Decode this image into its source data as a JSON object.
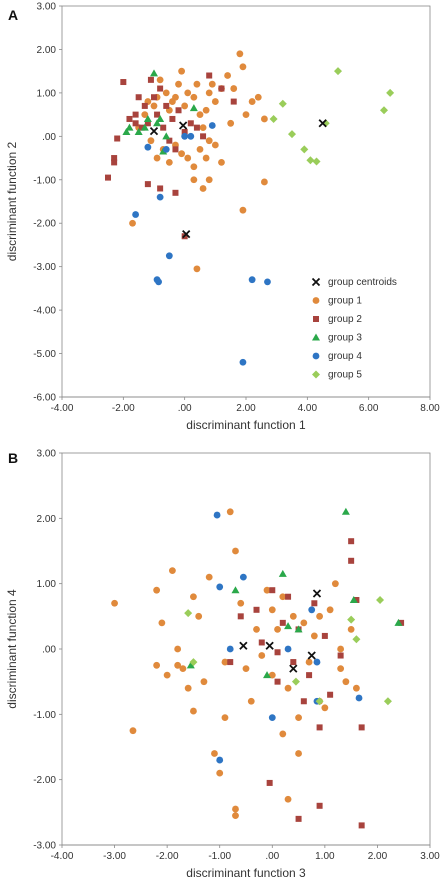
{
  "series_styles": {
    "group centroids": {
      "color": "#111111",
      "marker": "x"
    },
    "group 1": {
      "color": "#E08A3C",
      "marker": "circle"
    },
    "group 2": {
      "color": "#A8433D",
      "marker": "square"
    },
    "group 3": {
      "color": "#2AA84A",
      "marker": "triangle"
    },
    "group 4": {
      "color": "#2E75C4",
      "marker": "circle"
    },
    "group 5": {
      "color": "#9ACD5A",
      "marker": "diamond"
    }
  },
  "chart_data": [
    {
      "panel": "A",
      "type": "scatter",
      "xlabel": "discriminant function 1",
      "ylabel": "discriminant function 2",
      "xlim": [
        -4,
        8
      ],
      "ylim": [
        -6,
        3
      ],
      "xticks": [
        "-4.00",
        "-2.00",
        ".00",
        "2.00",
        "4.00",
        "6.00",
        "8.00"
      ],
      "yticks": [
        "3.00",
        "2.00",
        "1.00",
        ".00",
        "-1.00",
        "-2.00",
        "-3.00",
        "-4.00",
        "-5.00",
        "-6.00"
      ],
      "legend_position": "lower-right",
      "legend": [
        "group centroids",
        "group 1",
        "group 2",
        "group 3",
        "group 4",
        "group 5"
      ],
      "series": [
        {
          "name": "group centroids",
          "points": [
            [
              -0.05,
              0.25
            ],
            [
              -1.0,
              0.12
            ],
            [
              0.05,
              -2.25
            ],
            [
              4.5,
              0.3
            ]
          ]
        },
        {
          "name": "group 1",
          "points": [
            [
              -1.7,
              -2.0
            ],
            [
              -1.5,
              0.2
            ],
            [
              -1.3,
              0.5
            ],
            [
              -1.2,
              0.8
            ],
            [
              -1.0,
              0.7
            ],
            [
              -0.9,
              0.9
            ],
            [
              -0.8,
              1.3
            ],
            [
              -0.6,
              1.0
            ],
            [
              -0.5,
              0.6
            ],
            [
              -0.4,
              0.8
            ],
            [
              -0.3,
              0.9
            ],
            [
              -0.2,
              1.2
            ],
            [
              -0.1,
              1.5
            ],
            [
              0.0,
              0.7
            ],
            [
              0.1,
              1.0
            ],
            [
              0.3,
              0.9
            ],
            [
              0.4,
              1.2
            ],
            [
              0.5,
              0.5
            ],
            [
              0.6,
              0.2
            ],
            [
              0.7,
              0.6
            ],
            [
              0.8,
              1.0
            ],
            [
              0.9,
              1.2
            ],
            [
              1.0,
              0.8
            ],
            [
              1.2,
              1.1
            ],
            [
              1.4,
              1.4
            ],
            [
              1.6,
              1.1
            ],
            [
              1.8,
              1.9
            ],
            [
              1.9,
              1.6
            ],
            [
              2.0,
              0.5
            ],
            [
              2.2,
              0.8
            ],
            [
              2.4,
              0.9
            ],
            [
              2.6,
              0.4
            ],
            [
              1.9,
              -1.7
            ],
            [
              2.6,
              -1.05
            ],
            [
              -0.9,
              -0.5
            ],
            [
              -0.7,
              -0.3
            ],
            [
              -0.5,
              -0.6
            ],
            [
              -0.3,
              -0.2
            ],
            [
              -0.1,
              -0.4
            ],
            [
              0.1,
              -0.5
            ],
            [
              0.3,
              -0.7
            ],
            [
              0.5,
              -0.3
            ],
            [
              0.7,
              -0.5
            ],
            [
              0.8,
              -0.1
            ],
            [
              1.0,
              -0.2
            ],
            [
              1.2,
              -0.6
            ],
            [
              0.3,
              -1.0
            ],
            [
              0.6,
              -1.2
            ],
            [
              0.8,
              -1.0
            ],
            [
              0.4,
              -3.05
            ],
            [
              1.5,
              0.3
            ],
            [
              -1.1,
              -0.1
            ]
          ]
        },
        {
          "name": "group 2",
          "points": [
            [
              -2.5,
              -0.95
            ],
            [
              -2.3,
              -0.5
            ],
            [
              -2.2,
              -0.05
            ],
            [
              -2.0,
              1.25
            ],
            [
              -1.8,
              0.4
            ],
            [
              -1.6,
              0.3
            ],
            [
              -1.5,
              0.9
            ],
            [
              -1.4,
              0.2
            ],
            [
              -1.3,
              0.7
            ],
            [
              -1.2,
              0.3
            ],
            [
              -1.1,
              1.3
            ],
            [
              -1.0,
              0.9
            ],
            [
              -0.9,
              0.5
            ],
            [
              -0.8,
              1.1
            ],
            [
              -0.7,
              0.2
            ],
            [
              -0.6,
              0.7
            ],
            [
              -0.5,
              -0.1
            ],
            [
              -0.4,
              0.4
            ],
            [
              -0.3,
              -0.3
            ],
            [
              -0.2,
              0.6
            ],
            [
              0.0,
              0.1
            ],
            [
              0.2,
              0.3
            ],
            [
              0.4,
              0.2
            ],
            [
              0.6,
              0.0
            ],
            [
              0.8,
              1.4
            ],
            [
              -1.2,
              -1.1
            ],
            [
              -0.8,
              -1.2
            ],
            [
              -0.3,
              -1.3
            ],
            [
              0.0,
              -2.3
            ],
            [
              1.2,
              1.1
            ],
            [
              1.6,
              0.8
            ],
            [
              -2.3,
              -0.6
            ],
            [
              -1.6,
              0.5
            ]
          ]
        },
        {
          "name": "group 3",
          "points": [
            [
              -1.9,
              0.1
            ],
            [
              -1.8,
              0.2
            ],
            [
              -1.5,
              0.1
            ],
            [
              -1.3,
              0.2
            ],
            [
              -1.2,
              0.4
            ],
            [
              -1.0,
              1.45
            ],
            [
              -0.9,
              0.3
            ],
            [
              -0.8,
              0.4
            ],
            [
              -0.7,
              -0.35
            ],
            [
              -0.6,
              0.0
            ],
            [
              0.3,
              0.65
            ]
          ]
        },
        {
          "name": "group 4",
          "points": [
            [
              -1.6,
              -1.8
            ],
            [
              -1.2,
              -0.25
            ],
            [
              -0.8,
              -1.4
            ],
            [
              -0.5,
              -2.75
            ],
            [
              -0.9,
              -3.3
            ],
            [
              -0.85,
              -3.35
            ],
            [
              0.0,
              0.0
            ],
            [
              0.2,
              0.0
            ],
            [
              0.9,
              0.25
            ],
            [
              1.9,
              -5.2
            ],
            [
              2.2,
              -3.3
            ],
            [
              2.7,
              -3.35
            ],
            [
              -0.6,
              -0.3
            ]
          ]
        },
        {
          "name": "group 5",
          "points": [
            [
              3.2,
              0.75
            ],
            [
              3.5,
              0.05
            ],
            [
              3.9,
              -0.3
            ],
            [
              4.1,
              -0.55
            ],
            [
              4.3,
              -0.58
            ],
            [
              5.0,
              1.5
            ],
            [
              6.5,
              0.6
            ],
            [
              6.7,
              1.0
            ],
            [
              2.9,
              0.4
            ],
            [
              4.6,
              0.3
            ]
          ]
        }
      ]
    },
    {
      "panel": "B",
      "type": "scatter",
      "xlabel": "discriminant function 3",
      "ylabel": "discriminant function 4",
      "xlim": [
        -4,
        3
      ],
      "ylim": [
        -3,
        3
      ],
      "xticks": [
        "-4.00",
        "-3.00",
        "-2.00",
        "-1.00",
        ".00",
        "1.00",
        "2.00",
        "3.00"
      ],
      "yticks": [
        "3.00",
        "2.00",
        "1.00",
        ".00",
        "-1.00",
        "-2.00",
        "-3.00"
      ],
      "series": [
        {
          "name": "group centroids",
          "points": [
            [
              -0.55,
              0.05
            ],
            [
              -0.05,
              0.05
            ],
            [
              0.4,
              -0.3
            ],
            [
              0.75,
              -0.1
            ],
            [
              0.85,
              0.85
            ]
          ]
        },
        {
          "name": "group 1",
          "points": [
            [
              -3.0,
              0.7
            ],
            [
              -2.65,
              -1.25
            ],
            [
              -2.2,
              -0.25
            ],
            [
              -2.1,
              0.4
            ],
            [
              -2.0,
              -0.4
            ],
            [
              -1.9,
              1.2
            ],
            [
              -1.8,
              0.0
            ],
            [
              -1.7,
              -0.3
            ],
            [
              -1.6,
              -0.6
            ],
            [
              -1.5,
              0.8
            ],
            [
              -1.4,
              0.5
            ],
            [
              -1.3,
              -0.5
            ],
            [
              -1.2,
              1.1
            ],
            [
              -1.1,
              -1.6
            ],
            [
              -1.0,
              -1.9
            ],
            [
              -0.9,
              -0.2
            ],
            [
              -0.8,
              2.1
            ],
            [
              -0.7,
              1.5
            ],
            [
              -0.7,
              -2.45
            ],
            [
              -0.7,
              -2.55
            ],
            [
              -0.6,
              0.7
            ],
            [
              -0.5,
              -0.3
            ],
            [
              -0.4,
              -0.8
            ],
            [
              -0.3,
              0.3
            ],
            [
              -0.2,
              -0.1
            ],
            [
              -0.1,
              0.9
            ],
            [
              0.0,
              -0.4
            ],
            [
              0.1,
              0.3
            ],
            [
              0.2,
              0.8
            ],
            [
              0.3,
              -0.6
            ],
            [
              0.4,
              0.5
            ],
            [
              0.5,
              -1.05
            ],
            [
              0.6,
              0.4
            ],
            [
              0.7,
              -0.2
            ],
            [
              0.8,
              0.2
            ],
            [
              0.9,
              0.5
            ],
            [
              1.0,
              -0.9
            ],
            [
              1.1,
              0.6
            ],
            [
              1.2,
              1.0
            ],
            [
              1.3,
              0.0
            ],
            [
              1.4,
              -0.5
            ],
            [
              1.5,
              0.3
            ],
            [
              0.5,
              -1.6
            ],
            [
              0.3,
              -2.3
            ],
            [
              -1.5,
              -0.95
            ],
            [
              -0.9,
              -1.05
            ],
            [
              0.2,
              -1.3
            ],
            [
              -1.8,
              -0.25
            ],
            [
              -2.2,
              0.9
            ],
            [
              0.0,
              0.6
            ],
            [
              0.9,
              -0.8
            ],
            [
              1.3,
              -0.3
            ],
            [
              1.6,
              -0.6
            ]
          ]
        },
        {
          "name": "group 2",
          "points": [
            [
              -0.8,
              -0.2
            ],
            [
              -0.6,
              0.5
            ],
            [
              -0.3,
              0.6
            ],
            [
              -0.2,
              0.1
            ],
            [
              0.0,
              0.9
            ],
            [
              0.1,
              -0.5
            ],
            [
              0.2,
              0.4
            ],
            [
              0.3,
              0.8
            ],
            [
              0.4,
              -0.2
            ],
            [
              0.5,
              0.3
            ],
            [
              0.6,
              -0.8
            ],
            [
              0.7,
              -0.4
            ],
            [
              0.8,
              0.7
            ],
            [
              0.9,
              -1.2
            ],
            [
              1.0,
              0.2
            ],
            [
              1.1,
              -0.7
            ],
            [
              1.3,
              -0.1
            ],
            [
              1.5,
              1.65
            ],
            [
              1.5,
              1.35
            ],
            [
              1.6,
              0.75
            ],
            [
              1.7,
              -1.2
            ],
            [
              -0.05,
              -2.05
            ],
            [
              0.5,
              -2.6
            ],
            [
              0.9,
              -2.4
            ],
            [
              1.7,
              -2.7
            ],
            [
              0.1,
              -0.05
            ],
            [
              2.45,
              0.4
            ]
          ]
        },
        {
          "name": "group 3",
          "points": [
            [
              -1.55,
              -0.25
            ],
            [
              -0.7,
              0.9
            ],
            [
              0.2,
              1.15
            ],
            [
              -0.1,
              -0.4
            ],
            [
              0.5,
              0.3
            ],
            [
              1.4,
              2.1
            ],
            [
              1.55,
              0.75
            ],
            [
              2.4,
              0.4
            ],
            [
              0.3,
              0.35
            ]
          ]
        },
        {
          "name": "group 4",
          "points": [
            [
              -1.05,
              2.05
            ],
            [
              -1.0,
              0.95
            ],
            [
              -0.55,
              1.1
            ],
            [
              -0.8,
              0.0
            ],
            [
              -1.0,
              -1.7
            ],
            [
              0.0,
              -1.05
            ],
            [
              0.3,
              0.0
            ],
            [
              0.75,
              0.6
            ],
            [
              0.85,
              -0.2
            ],
            [
              0.85,
              -0.8
            ],
            [
              1.65,
              -0.75
            ]
          ]
        },
        {
          "name": "group 5",
          "points": [
            [
              -1.6,
              0.55
            ],
            [
              -1.5,
              -0.2
            ],
            [
              0.45,
              -0.5
            ],
            [
              0.9,
              -0.8
            ],
            [
              1.6,
              0.15
            ],
            [
              2.05,
              0.75
            ],
            [
              2.2,
              -0.8
            ],
            [
              1.5,
              0.45
            ]
          ]
        }
      ]
    }
  ]
}
